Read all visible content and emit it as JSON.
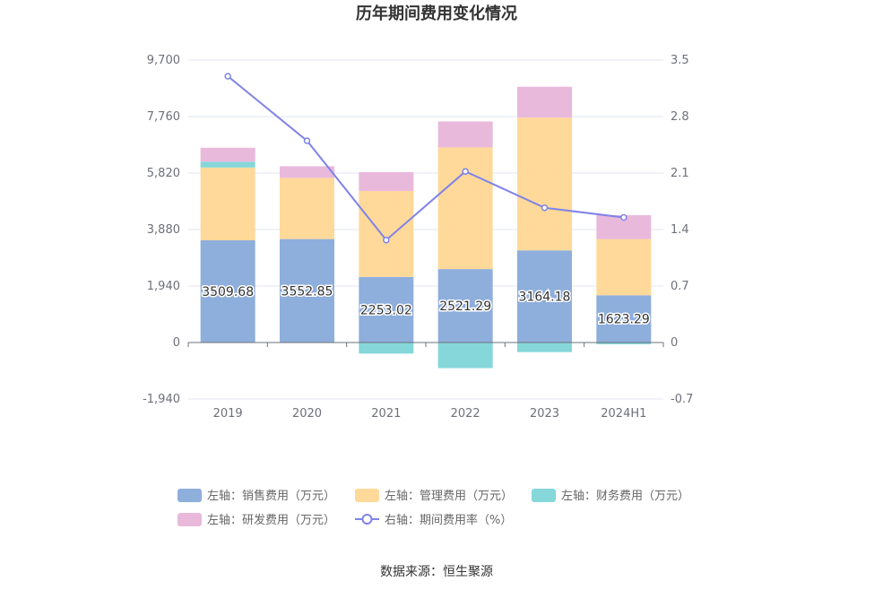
{
  "source": "数据来源：恒生聚源",
  "chart_data": {
    "type": "bar",
    "title": "历年期间费用变化情况",
    "categories": [
      "2019",
      "2020",
      "2021",
      "2022",
      "2023",
      "2024H1"
    ],
    "left_axis": {
      "min": -1940,
      "max": 9700,
      "ticks": [
        -1940,
        0,
        1940,
        3880,
        5820,
        7760,
        9700
      ],
      "tick_labels": [
        "-1,940",
        "0",
        "1,940",
        "3,880",
        "5,820",
        "7,760",
        "9,700"
      ]
    },
    "right_axis": {
      "min": -0.7,
      "max": 3.5,
      "ticks": [
        -0.7,
        0,
        0.7,
        1.4,
        2.1,
        2.8,
        3.5
      ],
      "tick_labels": [
        "-0.7",
        "0",
        "0.7",
        "1.4",
        "2.1",
        "2.8",
        "3.5"
      ]
    },
    "series": [
      {
        "name": "左轴：销售费用（万元）",
        "axis": "left",
        "kind": "bar",
        "color": "#8eaedc",
        "values": [
          3509.68,
          3552.85,
          2253.02,
          2521.29,
          3164.18,
          1623.29
        ],
        "data_labels": [
          "3509.68",
          "3552.85",
          "2253.02",
          "2521.29",
          "3164.18",
          "1623.29"
        ]
      },
      {
        "name": "左轴：管理费用（万元）",
        "axis": "left",
        "kind": "bar",
        "color": "#ffd99a",
        "values": [
          2500,
          2100,
          2950,
          4180,
          4560,
          1930
        ]
      },
      {
        "name": "左轴：财务费用（万元）",
        "axis": "left",
        "kind": "bar",
        "color": "#85d7d9",
        "values": [
          200,
          0,
          -380,
          -880,
          -330,
          -60
        ]
      },
      {
        "name": "左轴：研发费用（万元）",
        "axis": "left",
        "kind": "bar",
        "color": "#e9b9dc",
        "values": [
          480,
          400,
          650,
          890,
          1060,
          820
        ]
      },
      {
        "name": "右轴：期间费用率（%）",
        "axis": "right",
        "kind": "line",
        "color": "#7f83e8",
        "values": [
          3.3,
          2.5,
          1.27,
          2.12,
          1.67,
          1.55
        ]
      }
    ],
    "legend_position": "bottom",
    "grid": true
  }
}
